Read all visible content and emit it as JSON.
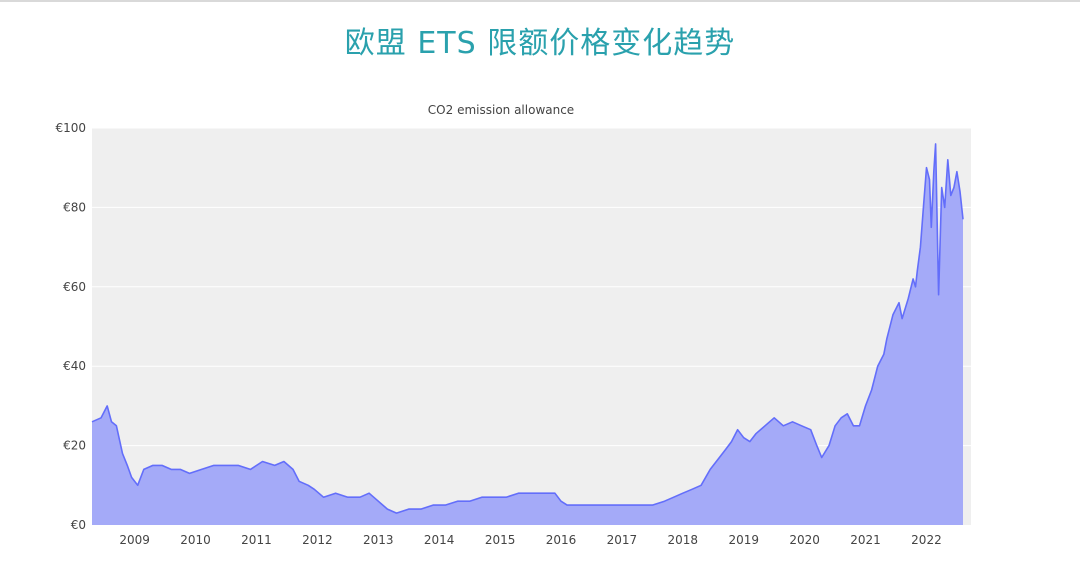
{
  "page_title": "欧盟 ETS 限额价格变化趋势",
  "colors": {
    "title": "#2aa1ad",
    "line": "#636efa",
    "fill": "#a4aaf8",
    "plot_bg": "#efefef",
    "grid": "#ffffff"
  },
  "chart_data": {
    "type": "area",
    "title": "CO2 emission allowance",
    "xlabel": "",
    "ylabel": "",
    "y_tick_prefix": "€",
    "xlim": [
      2008.3,
      2022.6
    ],
    "ylim": [
      0,
      100
    ],
    "y_ticks": [
      0,
      20,
      40,
      60,
      80,
      100
    ],
    "y_tick_labels": [
      "€0",
      "€20",
      "€40",
      "€60",
      "€80",
      "€100"
    ],
    "x_ticks": [
      2009,
      2010,
      2011,
      2012,
      2013,
      2014,
      2015,
      2016,
      2017,
      2018,
      2019,
      2020,
      2021,
      2022
    ],
    "x_tick_labels": [
      "2009",
      "2010",
      "2011",
      "2012",
      "2013",
      "2014",
      "2015",
      "2016",
      "2017",
      "2018",
      "2019",
      "2020",
      "2021",
      "2022"
    ],
    "grid": true,
    "series": [
      {
        "x": [
          2008.3,
          2008.45,
          2008.55,
          2008.62,
          2008.7,
          2008.8,
          2008.88,
          2008.95,
          2009.05,
          2009.15,
          2009.3,
          2009.45,
          2009.6,
          2009.75,
          2009.9,
          2010.1,
          2010.3,
          2010.5,
          2010.7,
          2010.9,
          2011.1,
          2011.3,
          2011.45,
          2011.6,
          2011.7,
          2011.85,
          2011.95,
          2012.1,
          2012.3,
          2012.5,
          2012.7,
          2012.85,
          2013.0,
          2013.15,
          2013.3,
          2013.5,
          2013.7,
          2013.9,
          2014.1,
          2014.3,
          2014.5,
          2014.7,
          2014.9,
          2015.1,
          2015.3,
          2015.5,
          2015.7,
          2015.9,
          2016.0,
          2016.1,
          2016.3,
          2016.5,
          2016.7,
          2016.9,
          2017.1,
          2017.3,
          2017.5,
          2017.7,
          2017.85,
          2018.0,
          2018.15,
          2018.3,
          2018.45,
          2018.6,
          2018.7,
          2018.8,
          2018.9,
          2019.0,
          2019.1,
          2019.2,
          2019.35,
          2019.5,
          2019.65,
          2019.8,
          2019.95,
          2020.1,
          2020.2,
          2020.28,
          2020.4,
          2020.5,
          2020.6,
          2020.7,
          2020.8,
          2020.9,
          2021.0,
          2021.1,
          2021.2,
          2021.3,
          2021.35,
          2021.45,
          2021.55,
          2021.6,
          2021.7,
          2021.78,
          2021.82,
          2021.85,
          2021.9,
          2021.95,
          2022.0,
          2022.05,
          2022.08,
          2022.12,
          2022.15,
          2022.2,
          2022.25,
          2022.3,
          2022.35,
          2022.4,
          2022.45,
          2022.5,
          2022.55,
          2022.6
        ],
        "values": [
          26,
          27,
          30,
          26,
          25,
          18,
          15,
          12,
          10,
          14,
          15,
          15,
          14,
          14,
          13,
          14,
          15,
          15,
          15,
          14,
          16,
          15,
          16,
          14,
          11,
          10,
          9,
          7,
          8,
          7,
          7,
          8,
          6,
          4,
          3,
          4,
          4,
          5,
          5,
          6,
          6,
          7,
          7,
          7,
          8,
          8,
          8,
          8,
          6,
          5,
          5,
          5,
          5,
          5,
          5,
          5,
          5,
          6,
          7,
          8,
          9,
          10,
          14,
          17,
          19,
          21,
          24,
          22,
          21,
          23,
          25,
          27,
          25,
          26,
          25,
          24,
          20,
          17,
          20,
          25,
          27,
          28,
          25,
          25,
          30,
          34,
          40,
          43,
          47,
          53,
          56,
          52,
          57,
          62,
          60,
          64,
          70,
          80,
          90,
          87,
          75,
          89,
          96,
          58,
          85,
          80,
          92,
          83,
          85,
          89,
          84,
          77
        ]
      }
    ]
  }
}
